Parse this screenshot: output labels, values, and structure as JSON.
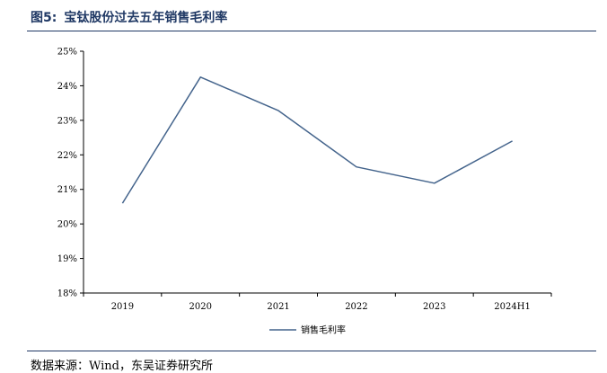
{
  "figure": {
    "label": "图5:",
    "title": "宝钛股份过去五年销售毛利率"
  },
  "source": "数据来源：Wind，东吴证券研究所",
  "colors": {
    "line": "#44648c",
    "title": "#1f3864",
    "axis": "#000000"
  },
  "chart_data": {
    "type": "line",
    "title": "",
    "xlabel": "",
    "ylabel": "",
    "categories": [
      "2019",
      "2020",
      "2021",
      "2022",
      "2023",
      "2024H1"
    ],
    "series": [
      {
        "name": "销售毛利率",
        "values": [
          20.6,
          24.25,
          23.28,
          21.65,
          21.18,
          22.4
        ]
      }
    ],
    "ylim": [
      18,
      25
    ],
    "yticks": [
      18,
      19,
      20,
      21,
      22,
      23,
      24,
      25
    ],
    "ytick_labels": [
      "18%",
      "19%",
      "20%",
      "21%",
      "22%",
      "23%",
      "24%",
      "25%"
    ],
    "grid": false,
    "legend": "bottom-center"
  }
}
